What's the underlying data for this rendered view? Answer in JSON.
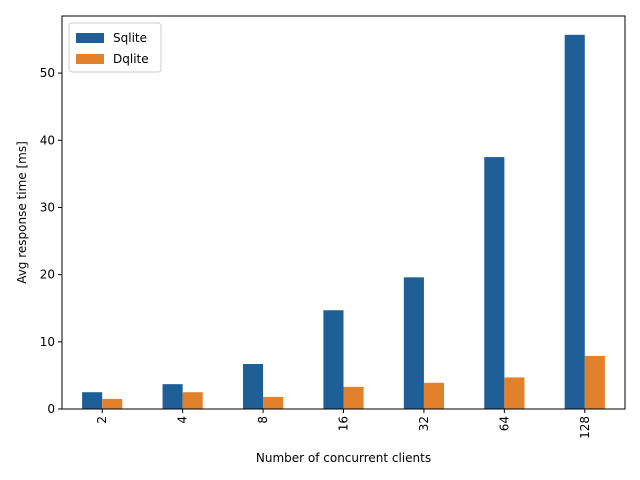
{
  "chart_data": {
    "type": "bar",
    "xlabel": "Number of concurrent clients",
    "ylabel": "Avg response time [ms]",
    "categories": [
      "2",
      "4",
      "8",
      "16",
      "32",
      "64",
      "128"
    ],
    "series": [
      {
        "name": "Sqlite",
        "color": "#1f5f97",
        "values": [
          2.5,
          3.7,
          6.7,
          14.7,
          19.6,
          37.5,
          55.7
        ]
      },
      {
        "name": "Dqlite",
        "color": "#e1812c",
        "values": [
          1.5,
          2.5,
          1.8,
          3.3,
          3.9,
          4.7,
          7.9
        ]
      }
    ],
    "yticks": [
      0,
      10,
      20,
      30,
      40,
      50
    ],
    "ylim": [
      0,
      58.5
    ],
    "legend_position": "top-left",
    "grid": false
  }
}
